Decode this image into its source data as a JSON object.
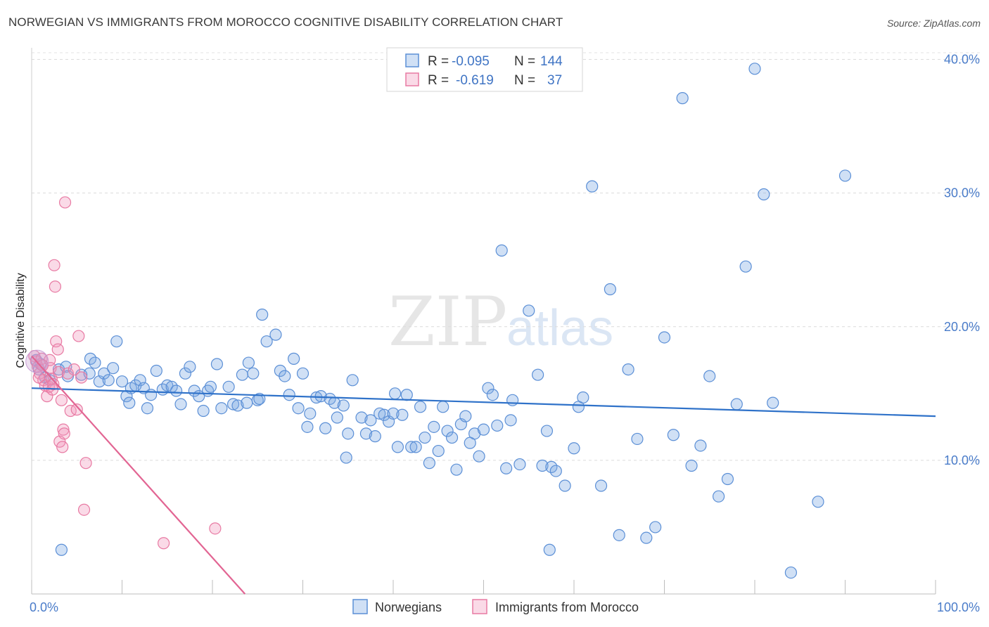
{
  "header": {
    "title": "NORWEGIAN VS IMMIGRANTS FROM MOROCCO COGNITIVE DISABILITY CORRELATION CHART",
    "source": "Source: ZipAtlas.com"
  },
  "watermark": {
    "zip": "ZIP",
    "atlas": "atlas"
  },
  "legend": {
    "rows": [
      {
        "r_label": "R =",
        "r_value": "-0.095",
        "n_label": "N =",
        "n_value": "144",
        "color": "#6a9fe0"
      },
      {
        "r_label": "R =",
        "r_value": "-0.619",
        "n_label": "N =",
        "n_value": "37",
        "color": "#f08db0"
      }
    ]
  },
  "bottom_legend": [
    {
      "label": "Norwegians",
      "color": "#6a9fe0"
    },
    {
      "label": "Immigrants from Morocco",
      "color": "#f08db0"
    }
  ],
  "colors": {
    "blue_fill": "rgba(120,165,225,0.35)",
    "blue_stroke": "#5b8fd6",
    "blue_line": "#2f72c9",
    "pink_fill": "rgba(240,150,185,0.35)",
    "pink_stroke": "#e87aa3",
    "pink_line": "#e26593"
  },
  "chart_data": {
    "type": "scatter",
    "title": "NORWEGIAN VS IMMIGRANTS FROM MOROCCO COGNITIVE DISABILITY CORRELATION CHART",
    "xlabel": "",
    "ylabel": "Cognitive Disability",
    "xlim": [
      0,
      100
    ],
    "ylim": [
      0,
      40.5
    ],
    "x_tick_labels": [
      {
        "value": 0,
        "label": "0.0%"
      },
      {
        "value": 100,
        "label": "100.0%"
      }
    ],
    "y_tick_labels": [
      {
        "value": 10,
        "label": "10.0%"
      },
      {
        "value": 20,
        "label": "20.0%"
      },
      {
        "value": 30,
        "label": "30.0%"
      },
      {
        "value": 40,
        "label": "40.0%"
      }
    ],
    "legend_position": "top-center",
    "series": [
      {
        "name": "Norwegians",
        "r": -0.095,
        "n": 144,
        "trend": {
          "x": [
            0,
            100
          ],
          "y": [
            15.4,
            13.3
          ]
        },
        "points": [
          [
            0.5,
            17.5
          ],
          [
            0.8,
            16.8
          ],
          [
            1.0,
            17.2
          ],
          [
            1.5,
            16.2
          ],
          [
            2.0,
            16.0
          ],
          [
            3.0,
            16.8
          ],
          [
            3.8,
            17.0
          ],
          [
            4.0,
            16.3
          ],
          [
            5.5,
            16.4
          ],
          [
            6.4,
            16.5
          ],
          [
            6.5,
            17.6
          ],
          [
            7.0,
            17.3
          ],
          [
            7.5,
            15.9
          ],
          [
            8.0,
            16.5
          ],
          [
            8.5,
            16.0
          ],
          [
            9.0,
            16.9
          ],
          [
            9.4,
            18.9
          ],
          [
            10.0,
            15.9
          ],
          [
            10.5,
            14.8
          ],
          [
            10.8,
            14.3
          ],
          [
            11.0,
            15.4
          ],
          [
            11.5,
            15.6
          ],
          [
            12.0,
            16.0
          ],
          [
            12.4,
            15.4
          ],
          [
            12.8,
            13.9
          ],
          [
            13.2,
            14.9
          ],
          [
            13.8,
            16.7
          ],
          [
            14.5,
            15.3
          ],
          [
            15.0,
            15.6
          ],
          [
            15.5,
            15.5
          ],
          [
            16.0,
            15.2
          ],
          [
            16.5,
            14.2
          ],
          [
            17.0,
            16.5
          ],
          [
            17.5,
            17.0
          ],
          [
            18.0,
            15.2
          ],
          [
            18.5,
            14.8
          ],
          [
            19.0,
            13.7
          ],
          [
            19.5,
            15.2
          ],
          [
            19.8,
            15.5
          ],
          [
            20.5,
            17.2
          ],
          [
            21.0,
            13.9
          ],
          [
            21.8,
            15.5
          ],
          [
            22.3,
            14.2
          ],
          [
            22.8,
            14.1
          ],
          [
            23.3,
            16.4
          ],
          [
            23.8,
            14.3
          ],
          [
            24.0,
            17.3
          ],
          [
            24.5,
            16.5
          ],
          [
            25.0,
            14.5
          ],
          [
            25.2,
            14.6
          ],
          [
            25.5,
            20.9
          ],
          [
            26.0,
            18.9
          ],
          [
            27.0,
            19.4
          ],
          [
            27.5,
            16.7
          ],
          [
            28.0,
            16.3
          ],
          [
            28.5,
            14.9
          ],
          [
            29.0,
            17.6
          ],
          [
            29.5,
            13.9
          ],
          [
            30.0,
            16.5
          ],
          [
            30.5,
            12.5
          ],
          [
            30.8,
            13.5
          ],
          [
            31.5,
            14.7
          ],
          [
            32.0,
            14.8
          ],
          [
            32.5,
            12.4
          ],
          [
            33.0,
            14.6
          ],
          [
            33.5,
            14.3
          ],
          [
            33.8,
            13.2
          ],
          [
            34.5,
            14.1
          ],
          [
            34.8,
            10.2
          ],
          [
            35.0,
            12.0
          ],
          [
            35.5,
            16.0
          ],
          [
            36.5,
            13.2
          ],
          [
            37.0,
            12.0
          ],
          [
            37.5,
            13.0
          ],
          [
            38.0,
            11.8
          ],
          [
            38.5,
            13.5
          ],
          [
            39.0,
            13.4
          ],
          [
            39.5,
            12.9
          ],
          [
            40.0,
            13.5
          ],
          [
            40.2,
            15.0
          ],
          [
            40.5,
            11.0
          ],
          [
            41.0,
            13.4
          ],
          [
            41.5,
            14.9
          ],
          [
            42.0,
            11.0
          ],
          [
            42.5,
            11.0
          ],
          [
            43.0,
            14.0
          ],
          [
            43.5,
            11.7
          ],
          [
            44.0,
            9.8
          ],
          [
            44.5,
            12.5
          ],
          [
            45.0,
            10.7
          ],
          [
            45.5,
            14.0
          ],
          [
            46.0,
            12.2
          ],
          [
            46.5,
            11.7
          ],
          [
            47.0,
            9.3
          ],
          [
            47.5,
            12.7
          ],
          [
            48.0,
            13.3
          ],
          [
            48.5,
            11.3
          ],
          [
            49.0,
            12.0
          ],
          [
            49.5,
            10.3
          ],
          [
            50.0,
            12.3
          ],
          [
            50.5,
            15.4
          ],
          [
            51.0,
            14.9
          ],
          [
            51.5,
            12.6
          ],
          [
            52.0,
            25.7
          ],
          [
            52.5,
            9.4
          ],
          [
            53.0,
            13.0
          ],
          [
            53.2,
            14.5
          ],
          [
            54.0,
            9.7
          ],
          [
            55.0,
            21.2
          ],
          [
            56.0,
            16.4
          ],
          [
            56.5,
            9.6
          ],
          [
            57.0,
            12.2
          ],
          [
            57.5,
            9.5
          ],
          [
            58.0,
            9.2
          ],
          [
            59.0,
            8.1
          ],
          [
            60.0,
            10.9
          ],
          [
            60.5,
            14.0
          ],
          [
            61.0,
            14.7
          ],
          [
            62.0,
            30.5
          ],
          [
            63.0,
            8.1
          ],
          [
            64.0,
            22.8
          ],
          [
            65.0,
            4.4
          ],
          [
            66.0,
            16.8
          ],
          [
            67.0,
            11.6
          ],
          [
            68.0,
            4.2
          ],
          [
            69.0,
            5.0
          ],
          [
            70.0,
            19.2
          ],
          [
            71.0,
            11.9
          ],
          [
            72.0,
            37.1
          ],
          [
            73.0,
            9.6
          ],
          [
            74.0,
            11.1
          ],
          [
            75.0,
            16.3
          ],
          [
            76.0,
            7.3
          ],
          [
            77.0,
            8.6
          ],
          [
            78.0,
            14.2
          ],
          [
            79.0,
            24.5
          ],
          [
            80.0,
            39.3
          ],
          [
            81.0,
            29.9
          ],
          [
            82.0,
            14.3
          ],
          [
            84.0,
            1.6
          ],
          [
            87.0,
            6.9
          ],
          [
            90.0,
            31.3
          ],
          [
            3.3,
            3.3
          ],
          [
            57.3,
            3.3
          ]
        ]
      },
      {
        "name": "Immigrants from Morocco",
        "r": -0.619,
        "n": 37,
        "trend": {
          "x": [
            0,
            23.6
          ],
          "y": [
            17.8,
            0
          ]
        },
        "points": [
          [
            0.3,
            17.8
          ],
          [
            0.5,
            17.4
          ],
          [
            0.7,
            17.0
          ],
          [
            0.9,
            16.5
          ],
          [
            1.1,
            17.6
          ],
          [
            1.3,
            16.0
          ],
          [
            1.5,
            15.6
          ],
          [
            1.7,
            14.8
          ],
          [
            1.9,
            15.5
          ],
          [
            2.0,
            17.5
          ],
          [
            2.1,
            16.9
          ],
          [
            2.2,
            16.1
          ],
          [
            2.3,
            15.3
          ],
          [
            2.4,
            15.7
          ],
          [
            2.5,
            24.6
          ],
          [
            2.6,
            23.0
          ],
          [
            2.7,
            18.9
          ],
          [
            2.9,
            18.3
          ],
          [
            3.0,
            16.6
          ],
          [
            3.1,
            11.4
          ],
          [
            3.3,
            14.5
          ],
          [
            3.4,
            11.0
          ],
          [
            3.5,
            12.3
          ],
          [
            3.6,
            12.0
          ],
          [
            3.7,
            29.3
          ],
          [
            4.0,
            16.5
          ],
          [
            4.3,
            13.7
          ],
          [
            4.7,
            16.8
          ],
          [
            5.0,
            13.8
          ],
          [
            5.2,
            19.3
          ],
          [
            5.5,
            16.2
          ],
          [
            6.0,
            9.8
          ],
          [
            5.8,
            6.3
          ],
          [
            14.6,
            3.8
          ],
          [
            20.3,
            4.9
          ],
          [
            1.2,
            17.1
          ],
          [
            0.8,
            16.2
          ]
        ]
      }
    ]
  }
}
